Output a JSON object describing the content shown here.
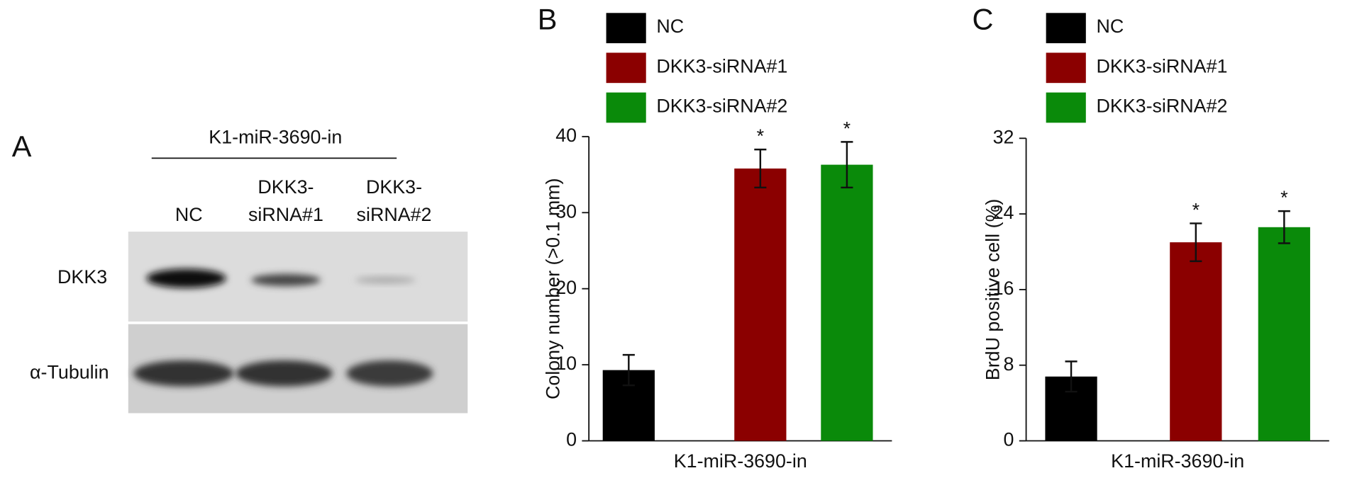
{
  "blot": {
    "panel": "A",
    "title": "K1-miR-3690-in",
    "lanes": [
      [
        "NC"
      ],
      [
        "DKK3-",
        "siRNA#1"
      ],
      [
        "DKK3-",
        "siRNA#2"
      ]
    ],
    "rows": [
      "DKK3",
      "α-Tubulin"
    ]
  },
  "chart_data": [
    {
      "type": "bar",
      "panel": "B",
      "y_label": "Colony number (>0.1 mm)",
      "categories": [
        "K1-miR-3690-in"
      ],
      "series": [
        {
          "name": "NC",
          "color": "#000000",
          "values": [
            9.3
          ],
          "errors": [
            2.0
          ]
        },
        {
          "name": "DKK3-siRNA#1",
          "color": "#8b0000",
          "values": [
            35.8
          ],
          "errors": [
            2.5
          ],
          "annotation": "*"
        },
        {
          "name": "DKK3-siRNA#2",
          "color": "#0a8a0a",
          "values": [
            36.3
          ],
          "errors": [
            3.0
          ],
          "annotation": "*"
        }
      ],
      "ylim": [
        0,
        40
      ],
      "yticks": [
        0,
        10,
        20,
        30,
        40
      ]
    },
    {
      "type": "bar",
      "panel": "C",
      "y_label": "BrdU positive cell (%)",
      "categories": [
        "K1-miR-3690-in"
      ],
      "series": [
        {
          "name": "NC",
          "color": "#000000",
          "values": [
            6.8
          ],
          "errors": [
            1.6
          ]
        },
        {
          "name": "DKK3-siRNA#1",
          "color": "#8b0000",
          "values": [
            21.0
          ],
          "errors": [
            2.0
          ],
          "annotation": "*"
        },
        {
          "name": "DKK3-siRNA#2",
          "color": "#0a8a0a",
          "values": [
            22.6
          ],
          "errors": [
            1.7
          ],
          "annotation": "*"
        }
      ],
      "ylim": [
        0,
        32
      ],
      "yticks": [
        0,
        8,
        16,
        24,
        32
      ]
    }
  ]
}
